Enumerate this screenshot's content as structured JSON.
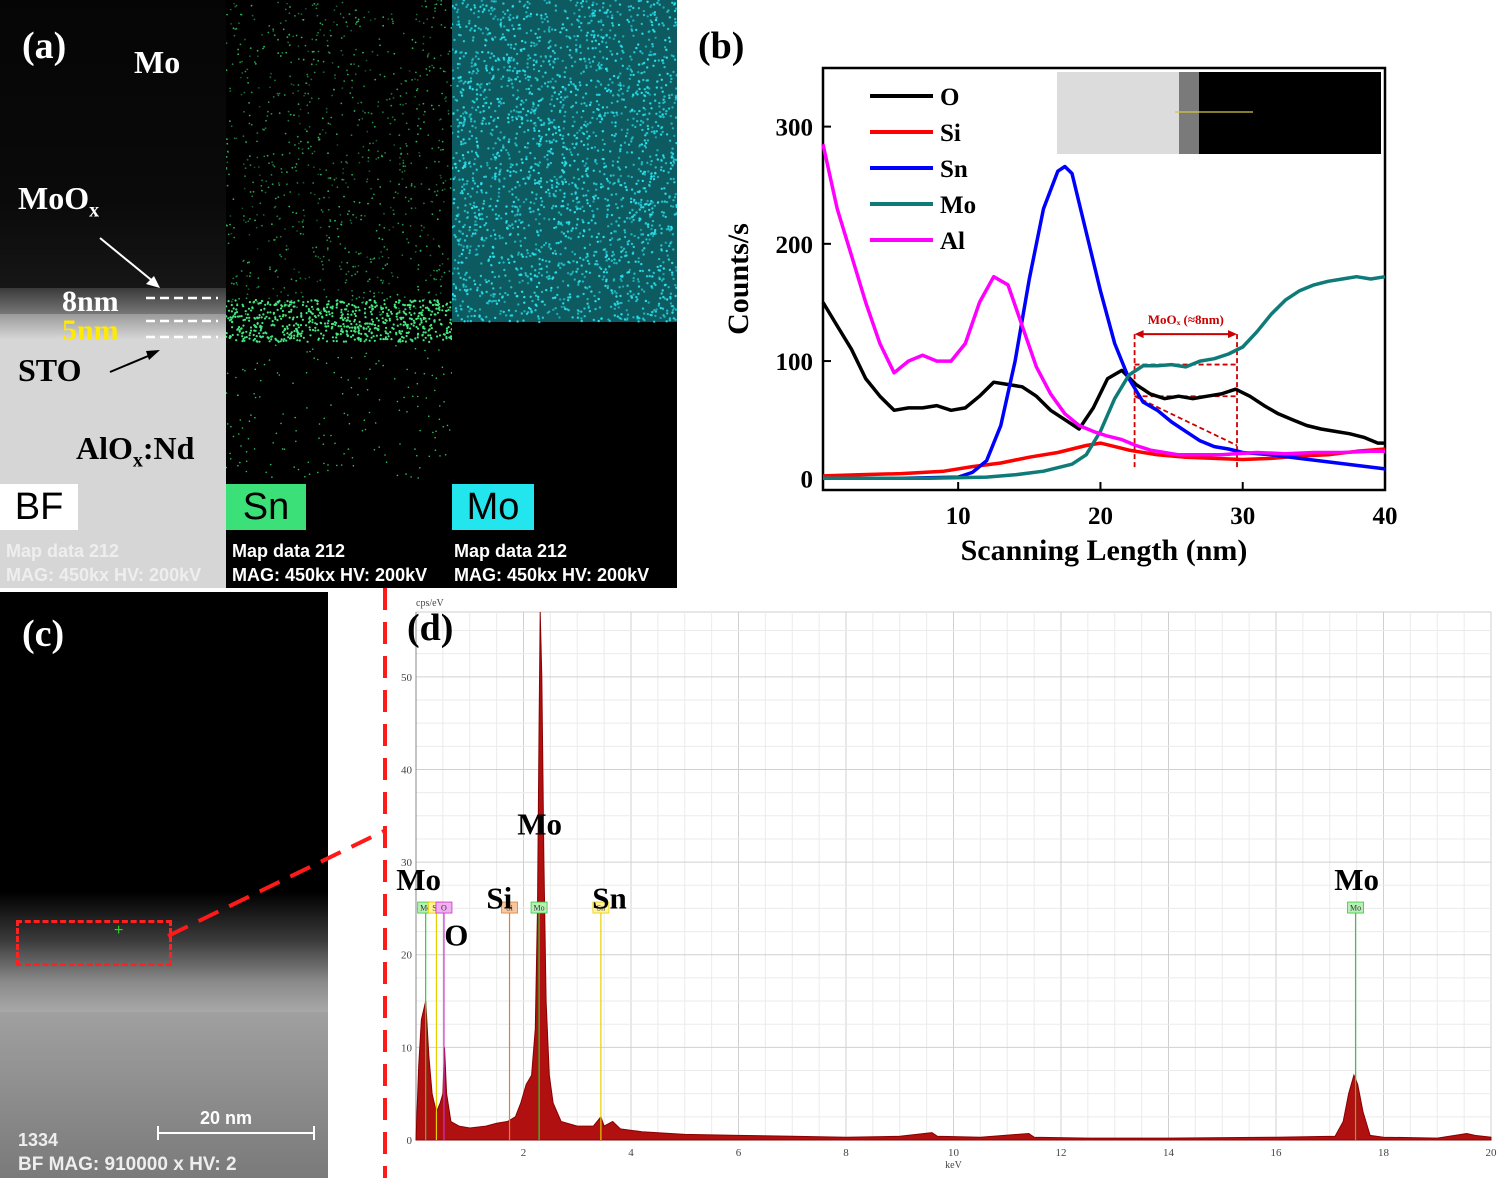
{
  "panel_a": {
    "label": "(a)",
    "bf": {
      "title": "Mo",
      "moox_main": "MoO",
      "moox_sub": "x",
      "thick1": "8nm",
      "thick2": "5nm",
      "sto": "STO",
      "alox_main": "AlO",
      "alox_sub": "x",
      "alox_tail": ":Nd",
      "tag": "BF",
      "map_line1": "Map data 212",
      "map_line2": "MAG: 450kx  HV: 200kV"
    },
    "sn": {
      "tag": "Sn",
      "map_line1": "Map data 212",
      "map_line2": "MAG: 450kx  HV: 200kV",
      "color": "#3be078"
    },
    "mo": {
      "tag": "Mo",
      "map_line1": "Map data 212",
      "map_line2": "MAG: 450kx  HV: 200kV",
      "color": "#22e5ee"
    }
  },
  "panel_c": {
    "label": "(c)",
    "scale": "20 nm",
    "id": "1334",
    "footer": "BF  MAG: 910000 x  HV: 2"
  },
  "chart_data": [
    {
      "id": "b",
      "label": "(b)",
      "type": "line",
      "xlabel": "Scanning Length (nm)",
      "ylabel": "Counts/s",
      "xlim": [
        0.5,
        40
      ],
      "ylim": [
        -10,
        350
      ],
      "xticks": [
        10,
        20,
        30,
        40
      ],
      "yticks": [
        0,
        100,
        200,
        300
      ],
      "legend": "top-left",
      "annotation": "MoOₓ (≈8nm)",
      "annotation_span": [
        22.4,
        29.6
      ],
      "series": [
        {
          "name": "O",
          "color": "#000000",
          "points": [
            [
              0.5,
              150
            ],
            [
              1.5,
              130
            ],
            [
              2.5,
              110
            ],
            [
              3.5,
              85
            ],
            [
              4.5,
              70
            ],
            [
              5.5,
              58
            ],
            [
              6.5,
              60
            ],
            [
              7.5,
              60
            ],
            [
              8.5,
              62
            ],
            [
              9.5,
              58
            ],
            [
              10.5,
              60
            ],
            [
              11.5,
              70
            ],
            [
              12.5,
              82
            ],
            [
              13.5,
              80
            ],
            [
              14.5,
              78
            ],
            [
              15.5,
              70
            ],
            [
              16.5,
              58
            ],
            [
              17.5,
              50
            ],
            [
              18.5,
              42
            ],
            [
              19.5,
              60
            ],
            [
              20.5,
              85
            ],
            [
              21.5,
              92
            ],
            [
              22.5,
              80
            ],
            [
              23.5,
              72
            ],
            [
              24.5,
              68
            ],
            [
              25.5,
              70
            ],
            [
              26.5,
              68
            ],
            [
              27.5,
              70
            ],
            [
              28.5,
              72
            ],
            [
              29.5,
              76
            ],
            [
              30.5,
              70
            ],
            [
              31.5,
              62
            ],
            [
              32.5,
              55
            ],
            [
              33.5,
              50
            ],
            [
              34.5,
              45
            ],
            [
              35.5,
              42
            ],
            [
              36.5,
              40
            ],
            [
              37.5,
              38
            ],
            [
              38.5,
              35
            ],
            [
              39.5,
              30
            ],
            [
              40,
              30
            ]
          ]
        },
        {
          "name": "Si",
          "color": "#ff0000",
          "points": [
            [
              0.5,
              2
            ],
            [
              3,
              3
            ],
            [
              6,
              4
            ],
            [
              9,
              6
            ],
            [
              11,
              10
            ],
            [
              13,
              13
            ],
            [
              15,
              18
            ],
            [
              17,
              22
            ],
            [
              19,
              28
            ],
            [
              20,
              30
            ],
            [
              21,
              27
            ],
            [
              22,
              24
            ],
            [
              24,
              20
            ],
            [
              26,
              18
            ],
            [
              28,
              17
            ],
            [
              30,
              16
            ],
            [
              32,
              17
            ],
            [
              34,
              19
            ],
            [
              36,
              20
            ],
            [
              38,
              23
            ],
            [
              40,
              25
            ]
          ]
        },
        {
          "name": "Sn",
          "color": "#0000ff",
          "points": [
            [
              0.5,
              0
            ],
            [
              6,
              0
            ],
            [
              10,
              1
            ],
            [
              11,
              5
            ],
            [
              12,
              15
            ],
            [
              13,
              45
            ],
            [
              14,
              100
            ],
            [
              15,
              170
            ],
            [
              16,
              230
            ],
            [
              17,
              262
            ],
            [
              17.5,
              266
            ],
            [
              18,
              260
            ],
            [
              19,
              210
            ],
            [
              20,
              160
            ],
            [
              21,
              115
            ],
            [
              22,
              85
            ],
            [
              23,
              65
            ],
            [
              24,
              58
            ],
            [
              25,
              48
            ],
            [
              26,
              40
            ],
            [
              27,
              32
            ],
            [
              28,
              27
            ],
            [
              29,
              25
            ],
            [
              30,
              22
            ],
            [
              32,
              20
            ],
            [
              34,
              17
            ],
            [
              36,
              14
            ],
            [
              38,
              11
            ],
            [
              40,
              8
            ]
          ]
        },
        {
          "name": "Mo",
          "color": "#0f7b78",
          "points": [
            [
              0.5,
              0
            ],
            [
              8,
              0
            ],
            [
              12,
              1
            ],
            [
              14,
              3
            ],
            [
              16,
              6
            ],
            [
              18,
              12
            ],
            [
              19,
              20
            ],
            [
              20,
              40
            ],
            [
              21,
              68
            ],
            [
              22,
              88
            ],
            [
              23,
              96
            ],
            [
              24,
              96
            ],
            [
              25,
              97
            ],
            [
              26,
              95
            ],
            [
              27,
              100
            ],
            [
              28,
              102
            ],
            [
              29,
              106
            ],
            [
              30,
              112
            ],
            [
              31,
              125
            ],
            [
              32,
              140
            ],
            [
              33,
              152
            ],
            [
              34,
              160
            ],
            [
              35,
              165
            ],
            [
              36,
              168
            ],
            [
              37,
              170
            ],
            [
              38,
              172
            ],
            [
              39,
              170
            ],
            [
              40,
              172
            ]
          ]
        },
        {
          "name": "Al",
          "color": "#ff00ff",
          "points": [
            [
              0.5,
              285
            ],
            [
              1.5,
              230
            ],
            [
              2.5,
              190
            ],
            [
              3.5,
              150
            ],
            [
              4.5,
              115
            ],
            [
              5.5,
              90
            ],
            [
              6.5,
              100
            ],
            [
              7.5,
              105
            ],
            [
              8.5,
              100
            ],
            [
              9.5,
              100
            ],
            [
              10.5,
              115
            ],
            [
              11.5,
              150
            ],
            [
              12.5,
              172
            ],
            [
              13.5,
              165
            ],
            [
              14.5,
              130
            ],
            [
              15.5,
              95
            ],
            [
              16.5,
              72
            ],
            [
              17.5,
              55
            ],
            [
              18.5,
              45
            ],
            [
              19.5,
              40
            ],
            [
              20.5,
              36
            ],
            [
              21.5,
              33
            ],
            [
              22.5,
              28
            ],
            [
              23.5,
              24
            ],
            [
              24.5,
              22
            ],
            [
              25.5,
              20
            ],
            [
              26.5,
              20
            ],
            [
              27.5,
              20
            ],
            [
              28.5,
              20
            ],
            [
              29.5,
              21
            ],
            [
              31,
              22
            ],
            [
              33,
              21
            ],
            [
              35,
              22
            ],
            [
              37,
              22
            ],
            [
              39,
              23
            ],
            [
              40,
              23
            ]
          ]
        }
      ]
    },
    {
      "id": "d",
      "label": "(d)",
      "type": "area",
      "ylabel": "cps/eV",
      "xlabel": "keV",
      "xlim": [
        0,
        20
      ],
      "ylim": [
        0,
        57
      ],
      "xticks": [
        2,
        4,
        6,
        8,
        10,
        12,
        14,
        16,
        18,
        20
      ],
      "yticks": [
        0,
        10,
        20,
        30,
        40,
        50
      ],
      "fill_color": "#b01010",
      "spectrum": [
        [
          0,
          0
        ],
        [
          0.05,
          8
        ],
        [
          0.1,
          13
        ],
        [
          0.18,
          15
        ],
        [
          0.24,
          9
        ],
        [
          0.3,
          5
        ],
        [
          0.38,
          3
        ],
        [
          0.45,
          4
        ],
        [
          0.5,
          5
        ],
        [
          0.53,
          10
        ],
        [
          0.57,
          5
        ],
        [
          0.65,
          2
        ],
        [
          0.8,
          1.5
        ],
        [
          1,
          1.3
        ],
        [
          1.3,
          1.5
        ],
        [
          1.5,
          1.8
        ],
        [
          1.7,
          2
        ],
        [
          1.85,
          2.5
        ],
        [
          1.95,
          4
        ],
        [
          2.05,
          6
        ],
        [
          2.15,
          7
        ],
        [
          2.22,
          12
        ],
        [
          2.26,
          25
        ],
        [
          2.29,
          45
        ],
        [
          2.31,
          57
        ],
        [
          2.34,
          50
        ],
        [
          2.38,
          30
        ],
        [
          2.42,
          15
        ],
        [
          2.48,
          7
        ],
        [
          2.55,
          4
        ],
        [
          2.7,
          2
        ],
        [
          3,
          1.5
        ],
        [
          3.3,
          1.5
        ],
        [
          3.44,
          2.5
        ],
        [
          3.5,
          1.5
        ],
        [
          3.66,
          2
        ],
        [
          3.8,
          1.2
        ],
        [
          4.2,
          0.9
        ],
        [
          5,
          0.6
        ],
        [
          6,
          0.5
        ],
        [
          7,
          0.4
        ],
        [
          8,
          0.3
        ],
        [
          9,
          0.4
        ],
        [
          9.6,
          0.8
        ],
        [
          9.7,
          0.4
        ],
        [
          10.5,
          0.3
        ],
        [
          11.4,
          0.7
        ],
        [
          11.5,
          0.3
        ],
        [
          12.5,
          0.2
        ],
        [
          14,
          0.2
        ],
        [
          16,
          0.3
        ],
        [
          17.1,
          0.4
        ],
        [
          17.25,
          2
        ],
        [
          17.35,
          5
        ],
        [
          17.45,
          7
        ],
        [
          17.52,
          6
        ],
        [
          17.62,
          3
        ],
        [
          17.75,
          0.5
        ],
        [
          18,
          0.3
        ],
        [
          19,
          0.2
        ],
        [
          19.55,
          0.7
        ],
        [
          19.7,
          0.5
        ],
        [
          20,
          0.3
        ]
      ],
      "peak_markers": [
        {
          "text": "Mo",
          "kev": 0.18,
          "color": "#33cc33",
          "bg": "#b6f0b6"
        },
        {
          "text": "Sn",
          "kev": 0.38,
          "color": "#e6d000",
          "bg": "#fff3a0"
        },
        {
          "text": "O",
          "kev": 0.52,
          "color": "#cc33cc",
          "bg": "#f0b0f0"
        },
        {
          "text": "Si",
          "kev": 1.74,
          "color": "#e08030",
          "bg": "#f7c7a0"
        },
        {
          "text": "Mo",
          "kev": 2.29,
          "color": "#33cc33",
          "bg": "#b6f0b6"
        },
        {
          "text": "Sn",
          "kev": 3.44,
          "color": "#e6d000",
          "bg": "#fff3a0"
        },
        {
          "text": "Mo",
          "kev": 17.48,
          "color": "#33cc33",
          "bg": "#b6f0b6"
        }
      ],
      "element_labels": [
        {
          "text": "Mo",
          "kev": 0.05,
          "y": 27
        },
        {
          "text": "O",
          "kev": 0.75,
          "y": 21
        },
        {
          "text": "Si",
          "kev": 1.55,
          "y": 25
        },
        {
          "text": "Mo",
          "kev": 2.3,
          "y": 33
        },
        {
          "text": "Sn",
          "kev": 3.6,
          "y": 25
        },
        {
          "text": "Mo",
          "kev": 17.5,
          "y": 27
        }
      ]
    }
  ]
}
